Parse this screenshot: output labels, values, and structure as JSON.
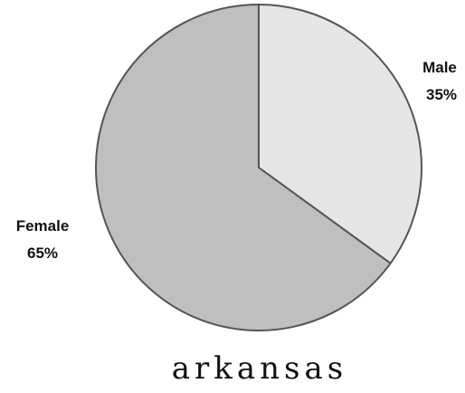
{
  "chart_data": {
    "type": "pie",
    "title": "arkansas",
    "slices": [
      {
        "label": "Male",
        "value": 35,
        "value_label": "35%",
        "color": "#e6e6e6"
      },
      {
        "label": "Female",
        "value": 65,
        "value_label": "65%",
        "color": "#bfbfbf"
      }
    ],
    "start_angle": "top (12 o'clock), clockwise",
    "legend": "none",
    "outline_color": "#555555"
  }
}
